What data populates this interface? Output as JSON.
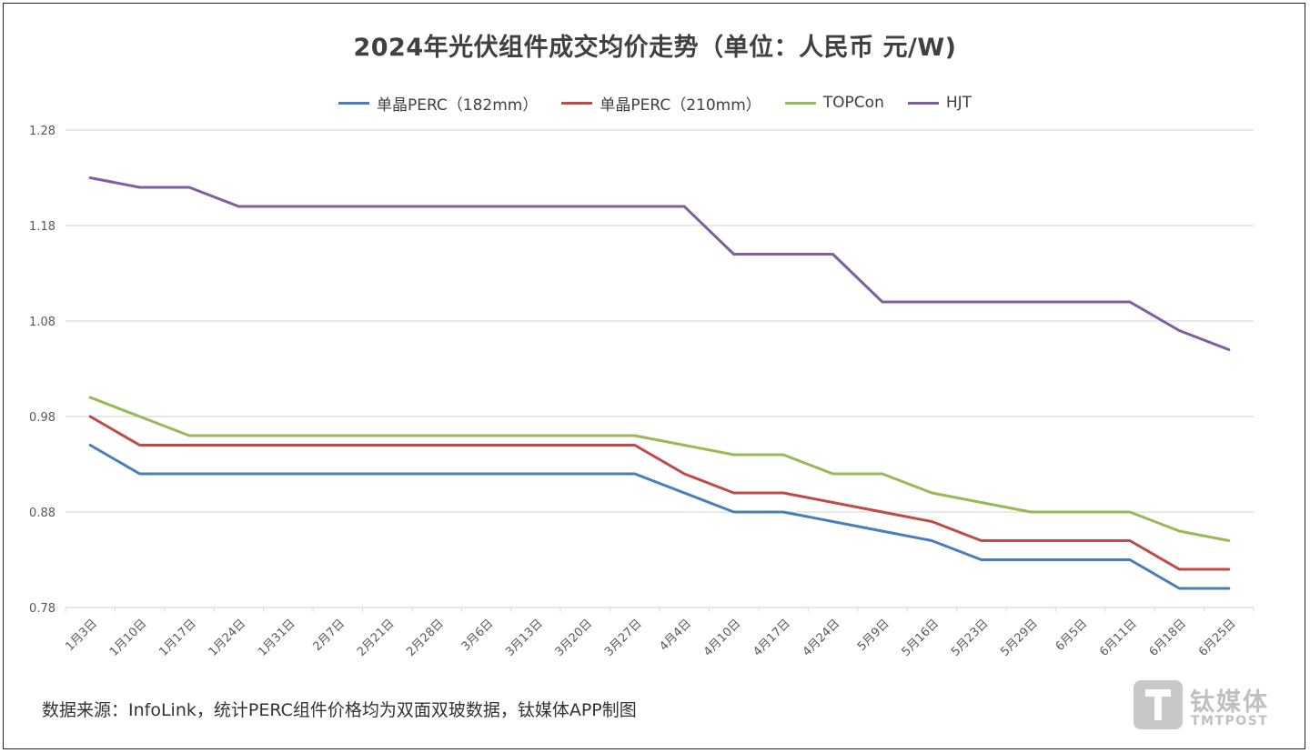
{
  "chart_data": {
    "type": "line",
    "title": "2024年光伏组件成交均价走势（单位：人民币 元/W)",
    "categories": [
      "1月3日",
      "1月10日",
      "1月17日",
      "1月24日",
      "1月31日",
      "2月7日",
      "2月21日",
      "2月28日",
      "3月6日",
      "3月13日",
      "3月20日",
      "3月27日",
      "4月4日",
      "4月10日",
      "4月17日",
      "4月24日",
      "5月9日",
      "5月16日",
      "5月23日",
      "5月29日",
      "6月5日",
      "6月11日",
      "6月18日",
      "6月25日"
    ],
    "yticks": [
      "0.78",
      "0.88",
      "0.98",
      "1.08",
      "1.18",
      "1.28"
    ],
    "ylim": [
      0.78,
      1.28
    ],
    "grid": true,
    "legend_position": "top",
    "series": [
      {
        "name": "单晶PERC（182mm）",
        "color": "#4a7ebb",
        "values": [
          0.95,
          0.92,
          0.92,
          0.92,
          0.92,
          0.92,
          0.92,
          0.92,
          0.92,
          0.92,
          0.92,
          0.92,
          0.9,
          0.88,
          0.88,
          0.87,
          0.86,
          0.85,
          0.83,
          0.83,
          0.83,
          0.83,
          0.8,
          0.8
        ]
      },
      {
        "name": "单晶PERC（210mm）",
        "color": "#be4b48",
        "values": [
          0.98,
          0.95,
          0.95,
          0.95,
          0.95,
          0.95,
          0.95,
          0.95,
          0.95,
          0.95,
          0.95,
          0.95,
          0.92,
          0.9,
          0.9,
          0.89,
          0.88,
          0.87,
          0.85,
          0.85,
          0.85,
          0.85,
          0.82,
          0.82
        ]
      },
      {
        "name": "TOPCon",
        "color": "#98b954",
        "values": [
          1.0,
          0.98,
          0.96,
          0.96,
          0.96,
          0.96,
          0.96,
          0.96,
          0.96,
          0.96,
          0.96,
          0.96,
          0.95,
          0.94,
          0.94,
          0.92,
          0.92,
          0.9,
          0.89,
          0.88,
          0.88,
          0.88,
          0.86,
          0.85
        ]
      },
      {
        "name": "HJT",
        "color": "#7d60a0",
        "values": [
          1.23,
          1.22,
          1.22,
          1.2,
          1.2,
          1.2,
          1.2,
          1.2,
          1.2,
          1.2,
          1.2,
          1.2,
          1.2,
          1.15,
          1.15,
          1.15,
          1.1,
          1.1,
          1.1,
          1.1,
          1.1,
          1.1,
          1.07,
          1.05
        ]
      }
    ]
  },
  "source_note": "数据来源：InfoLink，统计PERC组件价格均为双面双玻数据，钛媒体APP制图",
  "watermark": {
    "cn": "钛媒体",
    "en": "TMTPOST",
    "icon": "tmtpost-logo-icon"
  },
  "colors": {
    "grid": "#d9d9d9",
    "axis_text": "#595959",
    "title": "#404040"
  }
}
